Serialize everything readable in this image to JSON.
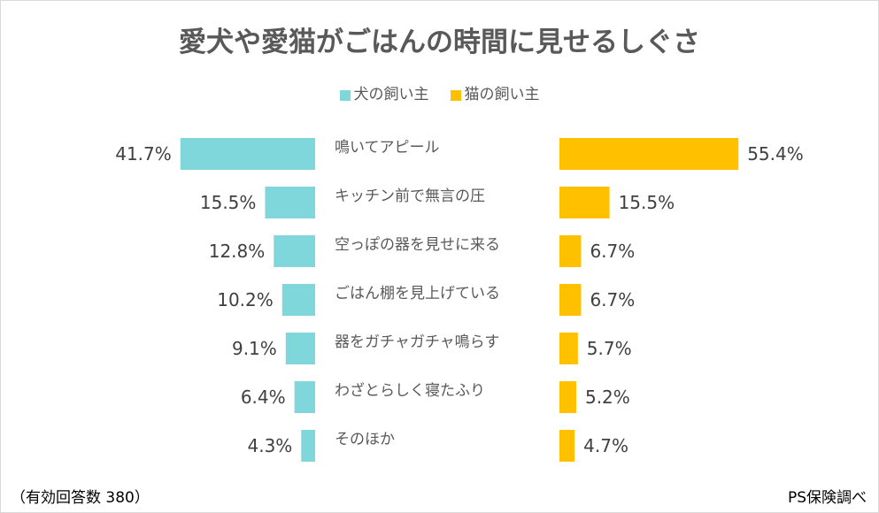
{
  "chart_data": {
    "type": "bar",
    "title": "愛犬や愛猫がごはんの時間に見せるしぐさ",
    "categories": [
      "鳴いてアピール",
      "キッチン前で無言の圧",
      "空っぽの器を見せに来る",
      "ごはん棚を見上げている",
      "器をガチャガチャ鳴らす",
      "わざとらしく寝たふり",
      "そのほか"
    ],
    "series": [
      {
        "name": "犬の飼い主",
        "color": "#7fd6db",
        "values": [
          41.7,
          15.5,
          12.8,
          10.2,
          9.1,
          6.4,
          4.3
        ],
        "labels": [
          "41.7%",
          "15.5%",
          "12.8%",
          "10.2%",
          "9.1%",
          "6.4%",
          "4.3%"
        ]
      },
      {
        "name": "猫の飼い主",
        "color": "#ffc000",
        "values": [
          55.4,
          15.5,
          6.7,
          6.7,
          5.7,
          5.2,
          4.7
        ],
        "labels": [
          "55.4%",
          "15.5%",
          "6.7%",
          "6.7%",
          "5.7%",
          "5.2%",
          "4.7%"
        ]
      }
    ],
    "unit": "%",
    "legend_position": "top-center",
    "grid": false
  },
  "footer": {
    "note": "（有効回答数 380）",
    "source": "PS保険調べ"
  }
}
